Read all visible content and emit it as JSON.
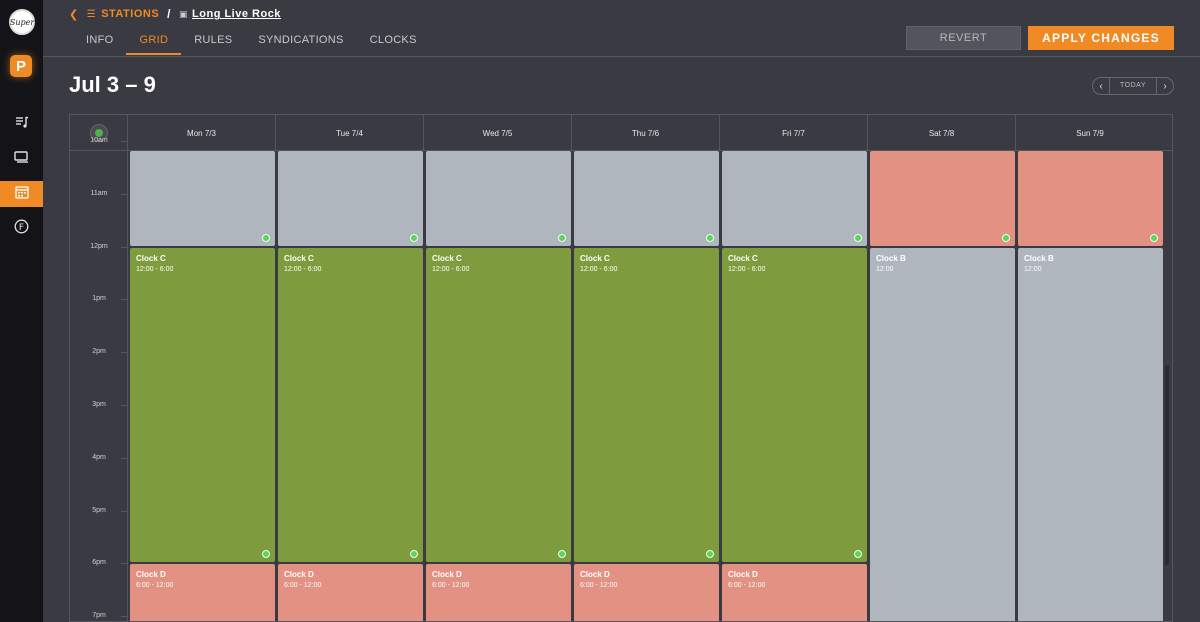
{
  "brand": {
    "logo_text": "Super",
    "app_letter": "P"
  },
  "nav": [
    "music-icon",
    "tv-icon",
    "calendar-icon",
    "f-icon"
  ],
  "breadcrumb": {
    "section": "STATIONS",
    "station": "Long Live Rock"
  },
  "tabs": [
    {
      "label": "INFO"
    },
    {
      "label": "GRID"
    },
    {
      "label": "RULES"
    },
    {
      "label": "SYNDICATIONS"
    },
    {
      "label": "CLOCKS"
    }
  ],
  "active_tab": "GRID",
  "actions": {
    "revert": "REVERT",
    "apply": "APPLY CHANGES"
  },
  "week": {
    "title": "Jul 3 – 9",
    "today_label": "TODAY"
  },
  "days": [
    "Mon 7/3",
    "Tue 7/4",
    "Wed 7/5",
    "Thu 7/6",
    "Fri 7/7",
    "Sat 7/8",
    "Sun 7/9"
  ],
  "times": [
    "10am",
    "11am",
    "12pm",
    "1pm",
    "2pm",
    "3pm",
    "4pm",
    "5pm",
    "6pm",
    "7pm"
  ],
  "columns": [
    [
      {
        "title": "",
        "time": "",
        "color": "gray",
        "end": 12,
        "dot": true
      },
      {
        "title": "Clock C",
        "time": "12:00 - 6:00",
        "color": "green",
        "start": 12,
        "end": 18,
        "dot": true
      },
      {
        "title": "Clock D",
        "time": "6:00 - 12:00",
        "color": "salmon",
        "start": 18
      }
    ],
    [
      {
        "title": "",
        "time": "",
        "color": "gray",
        "end": 12,
        "dot": true
      },
      {
        "title": "Clock C",
        "time": "12:00 - 6:00",
        "color": "green",
        "start": 12,
        "end": 18,
        "dot": true
      },
      {
        "title": "Clock D",
        "time": "6:00 - 12:00",
        "color": "salmon",
        "start": 18
      }
    ],
    [
      {
        "title": "",
        "time": "",
        "color": "gray",
        "end": 12,
        "dot": true
      },
      {
        "title": "Clock C",
        "time": "12:00 - 6:00",
        "color": "green",
        "start": 12,
        "end": 18,
        "dot": true
      },
      {
        "title": "Clock D",
        "time": "6:00 - 12:00",
        "color": "salmon",
        "start": 18
      }
    ],
    [
      {
        "title": "",
        "time": "",
        "color": "gray",
        "end": 12,
        "dot": true
      },
      {
        "title": "Clock C",
        "time": "12:00 - 6:00",
        "color": "green",
        "start": 12,
        "end": 18,
        "dot": true
      },
      {
        "title": "Clock D",
        "time": "6:00 - 12:00",
        "color": "salmon",
        "start": 18
      }
    ],
    [
      {
        "title": "",
        "time": "",
        "color": "gray",
        "end": 12,
        "dot": true
      },
      {
        "title": "Clock C",
        "time": "12:00 - 6:00",
        "color": "green",
        "start": 12,
        "end": 18,
        "dot": true
      },
      {
        "title": "Clock D",
        "time": "6:00 - 12:00",
        "color": "salmon",
        "start": 18
      }
    ],
    [
      {
        "title": "",
        "time": "",
        "color": "salmon",
        "end": 12,
        "dot": true
      },
      {
        "title": "Clock B",
        "time": "12:00",
        "color": "gray",
        "start": 12
      }
    ],
    [
      {
        "title": "",
        "time": "",
        "color": "salmon",
        "end": 12,
        "dot": true
      },
      {
        "title": "Clock B",
        "time": "12:00",
        "color": "gray",
        "start": 12
      }
    ]
  ],
  "colors": {
    "accent": "#f08a24",
    "gray": "#b0b6be",
    "green": "#7e9c3e",
    "salmon": "#e29183",
    "status_dot": "#5fd35f"
  }
}
